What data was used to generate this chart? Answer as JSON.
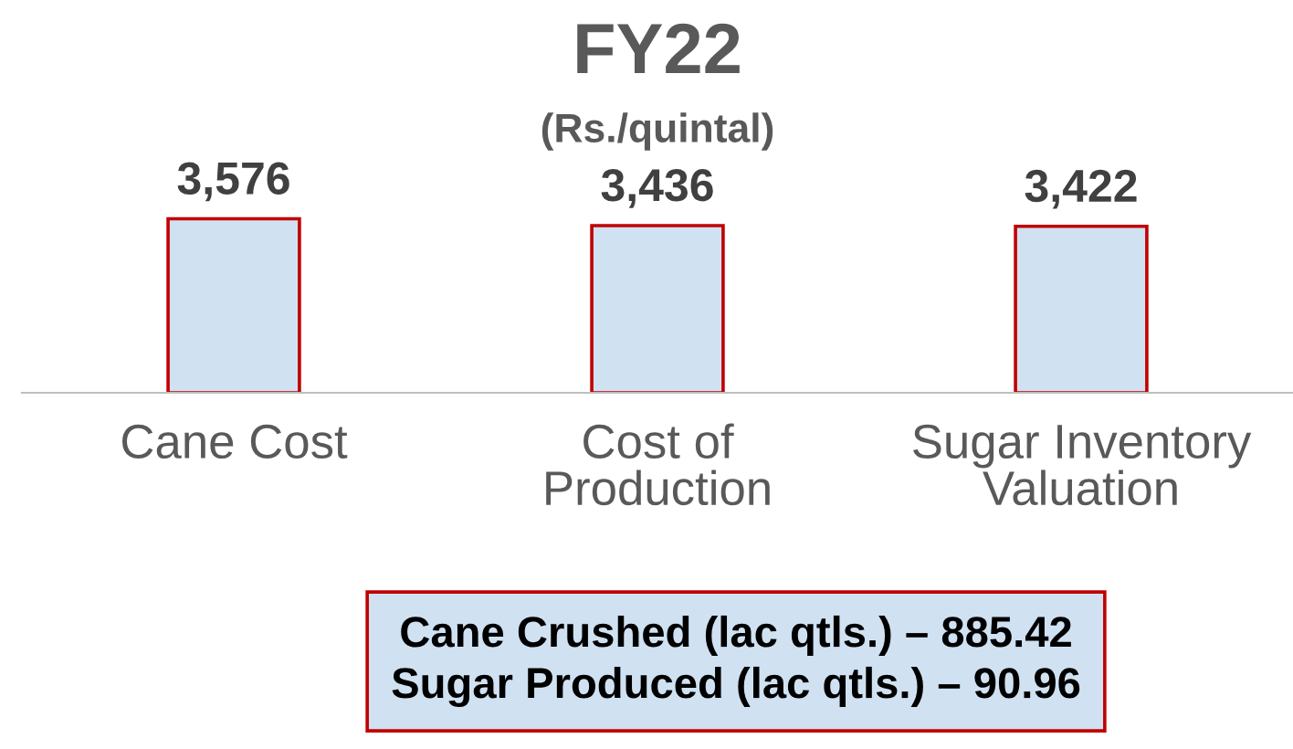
{
  "chart_data": {
    "type": "bar",
    "title": "FY22",
    "subtitle": "(Rs./quintal)",
    "categories": [
      "Cane Cost",
      "Cost of\nProduction",
      "Sugar Inventory\nValuation"
    ],
    "values": [
      3576,
      3436,
      3422
    ],
    "value_labels": [
      "3,576",
      "3,436",
      "3,422"
    ],
    "color": "#d0e1f2",
    "tick_labels": "x",
    "grid": false,
    "legend": false,
    "annotations": [
      "Cane Crushed (lac qtls.) – 885.42",
      "Sugar Produced (lac qtls.) – 90.96"
    ]
  }
}
